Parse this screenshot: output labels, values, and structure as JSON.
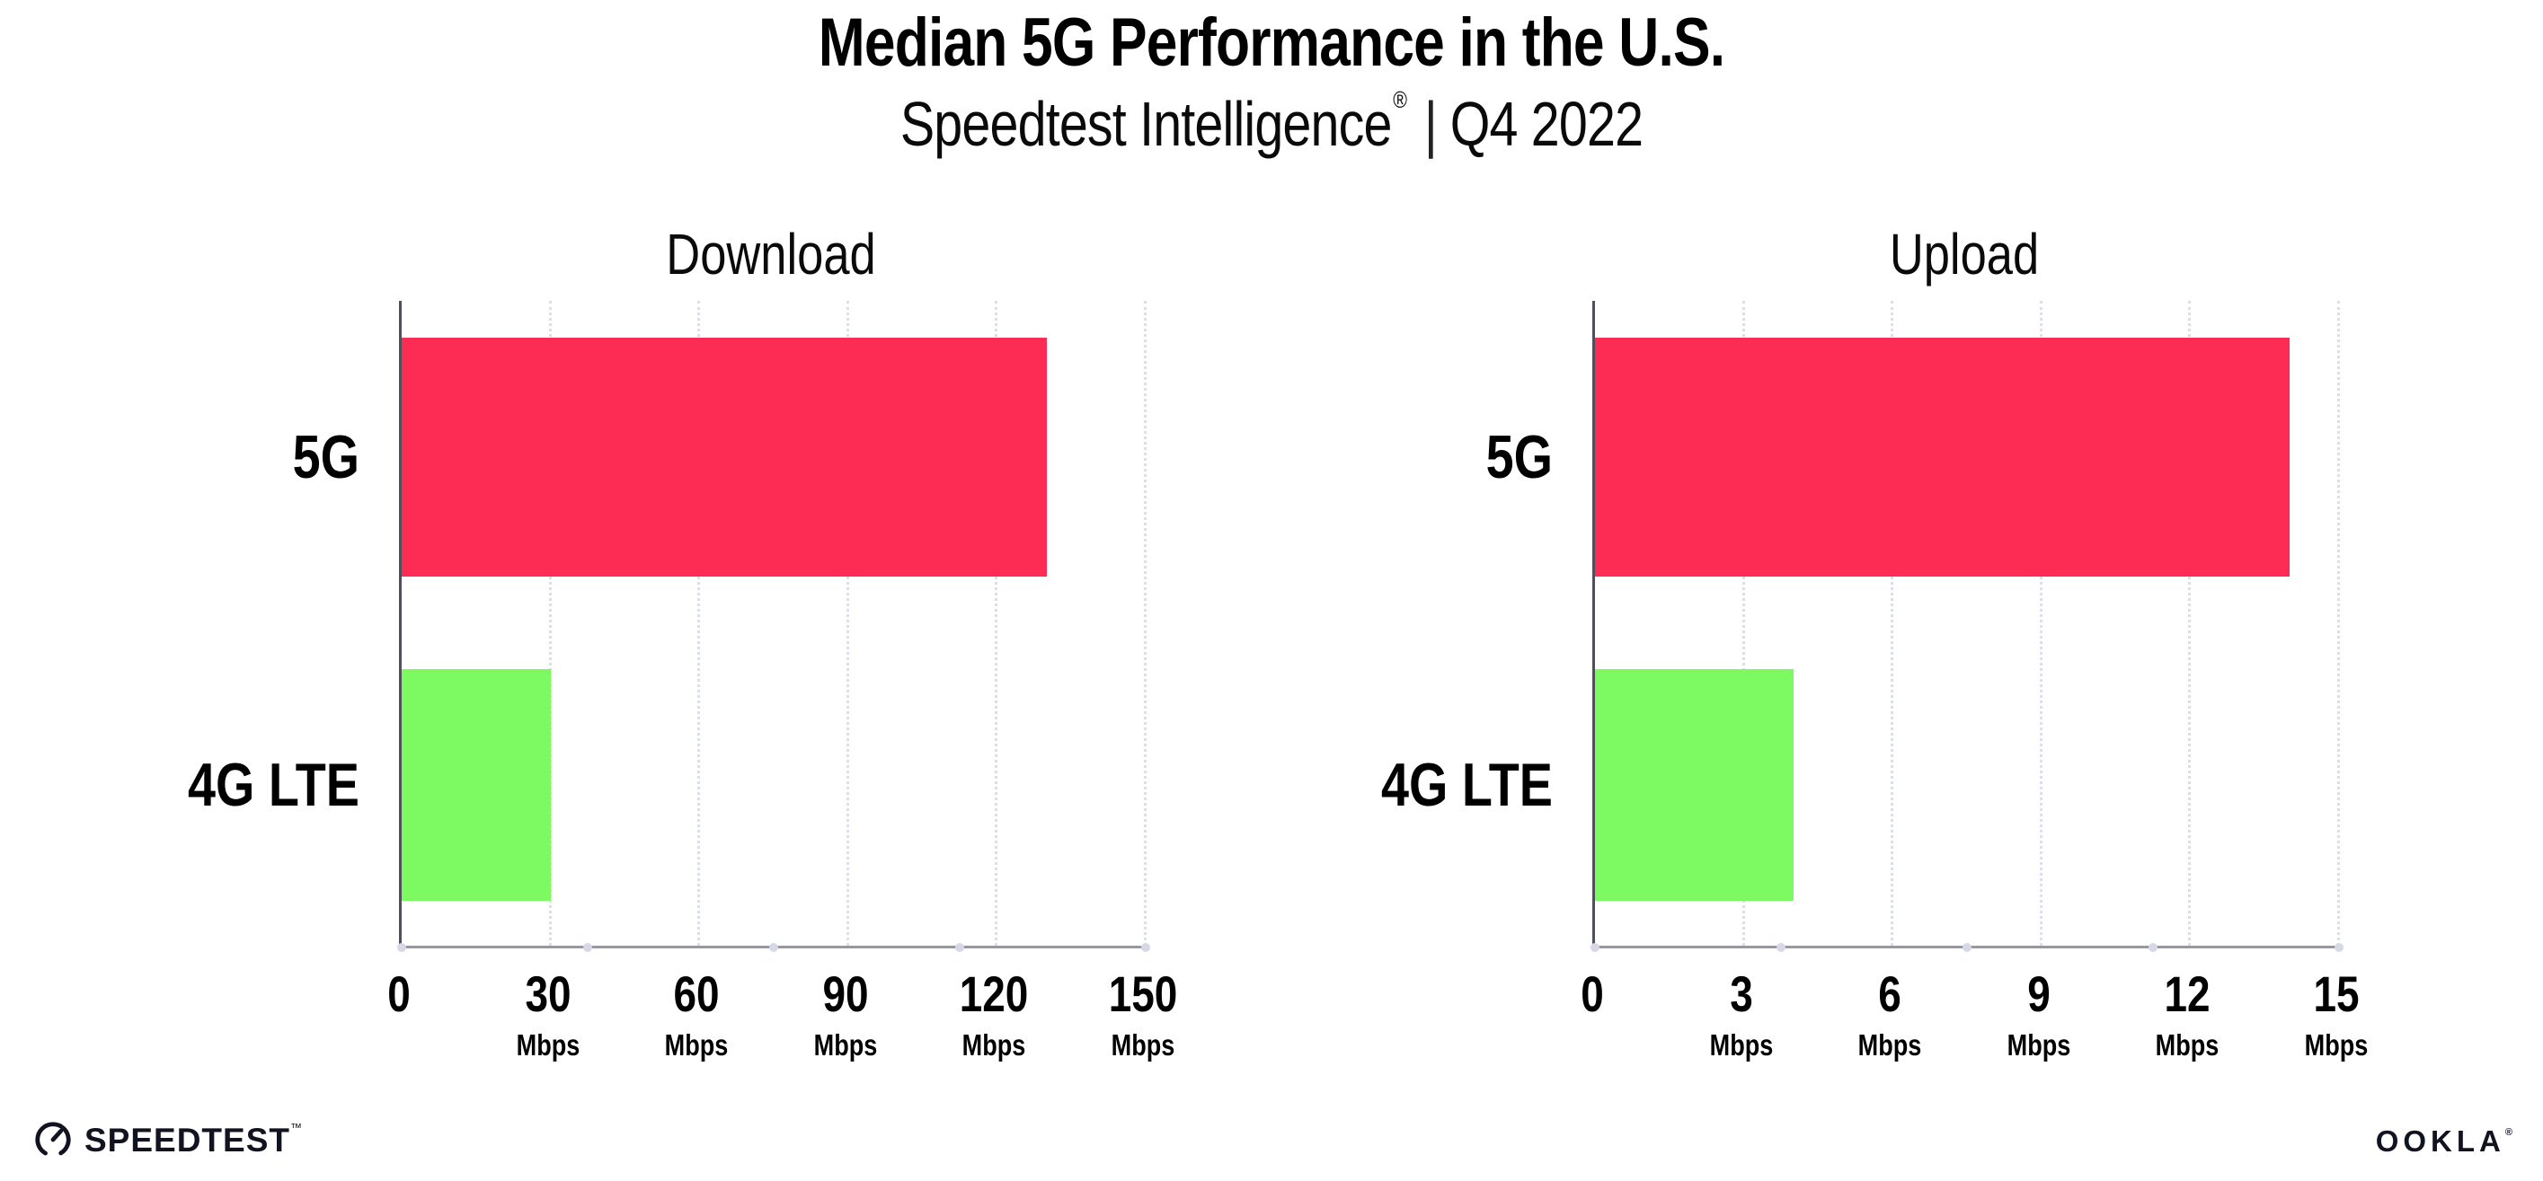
{
  "header": {
    "title": "Median 5G Performance in the U.S.",
    "subtitle_brand": "Speedtest Intelligence",
    "subtitle_mark": "®",
    "subtitle_sep": "|",
    "subtitle_period": "Q4 2022"
  },
  "colors": {
    "bar_5g": "#FC2C55",
    "bar_4g_lte": "#7DFA61",
    "x_axis_line": "#98989E",
    "y_axis_line": "#50505A",
    "gridline": "#DCDEE8",
    "axis_dot": "#D5D8E6",
    "text": "#000000"
  },
  "chart_data": [
    {
      "type": "bar",
      "orientation": "horizontal",
      "title": "Download",
      "categories": [
        "5G",
        "4G LTE"
      ],
      "values": [
        130,
        30
      ],
      "unit": "Mbps",
      "xlim": [
        0,
        150
      ],
      "xticks": [
        0,
        30,
        60,
        90,
        120,
        150
      ],
      "bar_colors": [
        "#FC2C55",
        "#7DFA61"
      ],
      "grid": "dotted-vertical",
      "legend": "none"
    },
    {
      "type": "bar",
      "orientation": "horizontal",
      "title": "Upload",
      "categories": [
        "5G",
        "4G LTE"
      ],
      "values": [
        14,
        4
      ],
      "unit": "Mbps",
      "xlim": [
        0,
        15
      ],
      "xticks": [
        0,
        3,
        6,
        9,
        12,
        15
      ],
      "bar_colors": [
        "#FC2C55",
        "#7DFA61"
      ],
      "grid": "dotted-vertical",
      "legend": "none"
    }
  ],
  "footer": {
    "speedtest_label": "SPEEDTEST",
    "speedtest_tm": "™",
    "ookla_label": "OOKLA",
    "ookla_reg": "®"
  }
}
